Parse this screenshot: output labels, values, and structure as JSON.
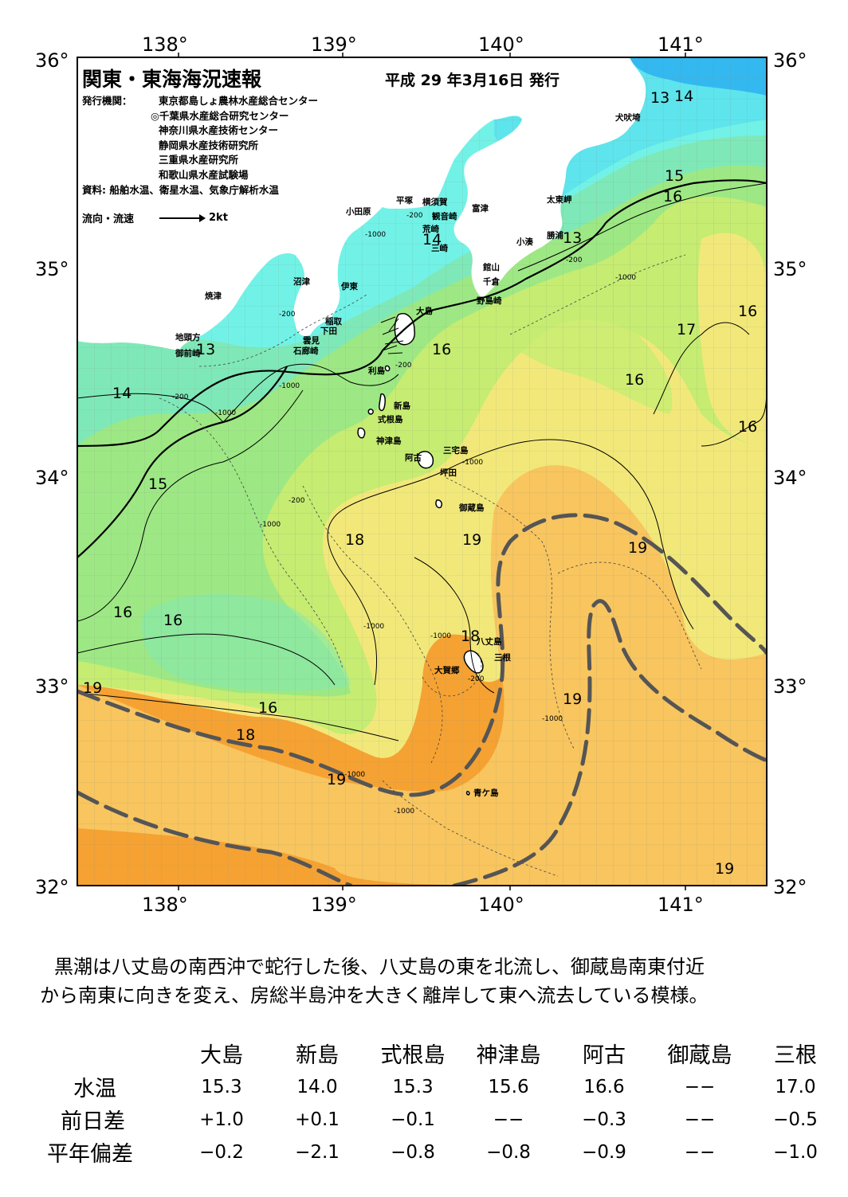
{
  "header": {
    "title": "関東・東海海況速報",
    "date": "平成 29 年3月16日 発行"
  },
  "publisher": {
    "label": "発行機関：",
    "orgs": [
      "東京都島しょ農林水産総合センター",
      "◎千葉県水産総合研究センター",
      "神奈川県水産技術センター",
      "静岡県水産技術研究所",
      "三重県水産研究所",
      "和歌山県水産試験場"
    ]
  },
  "source": "資料: 船舶水温、衛星水温、気象庁解析水温",
  "legend": {
    "label": "流向・流速",
    "scale": "2kt"
  },
  "axes": {
    "lon": [
      "138°",
      "139°",
      "140°",
      "141°"
    ],
    "lat": [
      "36°",
      "35°",
      "34°",
      "33°",
      "32°"
    ]
  },
  "places": [
    {
      "name": "犬吠埼"
    },
    {
      "name": "太東岬"
    },
    {
      "name": "勝浦"
    },
    {
      "name": "小湊"
    },
    {
      "name": "富津"
    },
    {
      "name": "横須賀"
    },
    {
      "name": "観音崎"
    },
    {
      "name": "平塚"
    },
    {
      "name": "荒崎"
    },
    {
      "name": "小田原"
    },
    {
      "name": "三崎"
    },
    {
      "name": "館山"
    },
    {
      "name": "千倉"
    },
    {
      "name": "野島崎"
    },
    {
      "name": "大島"
    },
    {
      "name": "沼津"
    },
    {
      "name": "伊東"
    },
    {
      "name": "稲取"
    },
    {
      "name": "下田"
    },
    {
      "name": "雲見"
    },
    {
      "name": "石廊崎"
    },
    {
      "name": "焼津"
    },
    {
      "name": "地頭方"
    },
    {
      "name": "御前崎"
    },
    {
      "name": "利島"
    },
    {
      "name": "新島"
    },
    {
      "name": "式根島"
    },
    {
      "name": "神津島"
    },
    {
      "name": "三宅島"
    },
    {
      "name": "阿古"
    },
    {
      "name": "坪田"
    },
    {
      "name": "御蔵島"
    },
    {
      "name": "八丈島"
    },
    {
      "name": "三根"
    },
    {
      "name": "大賀郷"
    },
    {
      "name": "青ケ島"
    }
  ],
  "isotherm_labels": [
    "13",
    "14",
    "15",
    "16",
    "13",
    "14",
    "13",
    "16",
    "16",
    "17",
    "16",
    "16",
    "14",
    "15",
    "18",
    "19",
    "19",
    "16",
    "16",
    "18",
    "19",
    "19",
    "16",
    "18",
    "19",
    "19"
  ],
  "depth_labels": [
    "-200",
    "-1000",
    "-200",
    "-1000",
    "-1000",
    "-200",
    "-200",
    "-1000",
    "-200",
    "-1000",
    "-200",
    "-1000",
    "-1000",
    "-1000",
    "-1000",
    "-200",
    "-1000",
    "-1000"
  ],
  "colors": {
    "cold": "#5ee4ec",
    "cyan": "#72f2e6",
    "teal": "#7fe8b8",
    "green": "#9de884",
    "lime": "#c6ec72",
    "yellow": "#f2e87a",
    "lightorange": "#f8c55f",
    "orange": "#f5a233",
    "kuroshio_axis": "#555555",
    "land": "#ffffff"
  },
  "summary": [
    "黒潮は八丈島の南西沖で蛇行した後、八丈島の東を北流し、御蔵島南東付近",
    "から南東に向きを変え、房総半島沖を大きく離岸して東へ流去している模様。"
  ],
  "table": {
    "columns": [
      "大島",
      "新島",
      "式根島",
      "神津島",
      "阿古",
      "御蔵島",
      "三根"
    ],
    "rows": [
      {
        "label": "水温",
        "values": [
          "15.3",
          "14.0",
          "15.3",
          "15.6",
          "16.6",
          "−−",
          "17.0"
        ]
      },
      {
        "label": "前日差",
        "values": [
          "+1.0",
          "+0.1",
          "−0.1",
          "−−",
          "−0.3",
          "−−",
          "−0.5"
        ]
      },
      {
        "label": "平年偏差",
        "values": [
          "−0.2",
          "−2.1",
          "−0.8",
          "−0.8",
          "−0.9",
          "−−",
          "−1.0"
        ]
      }
    ]
  }
}
